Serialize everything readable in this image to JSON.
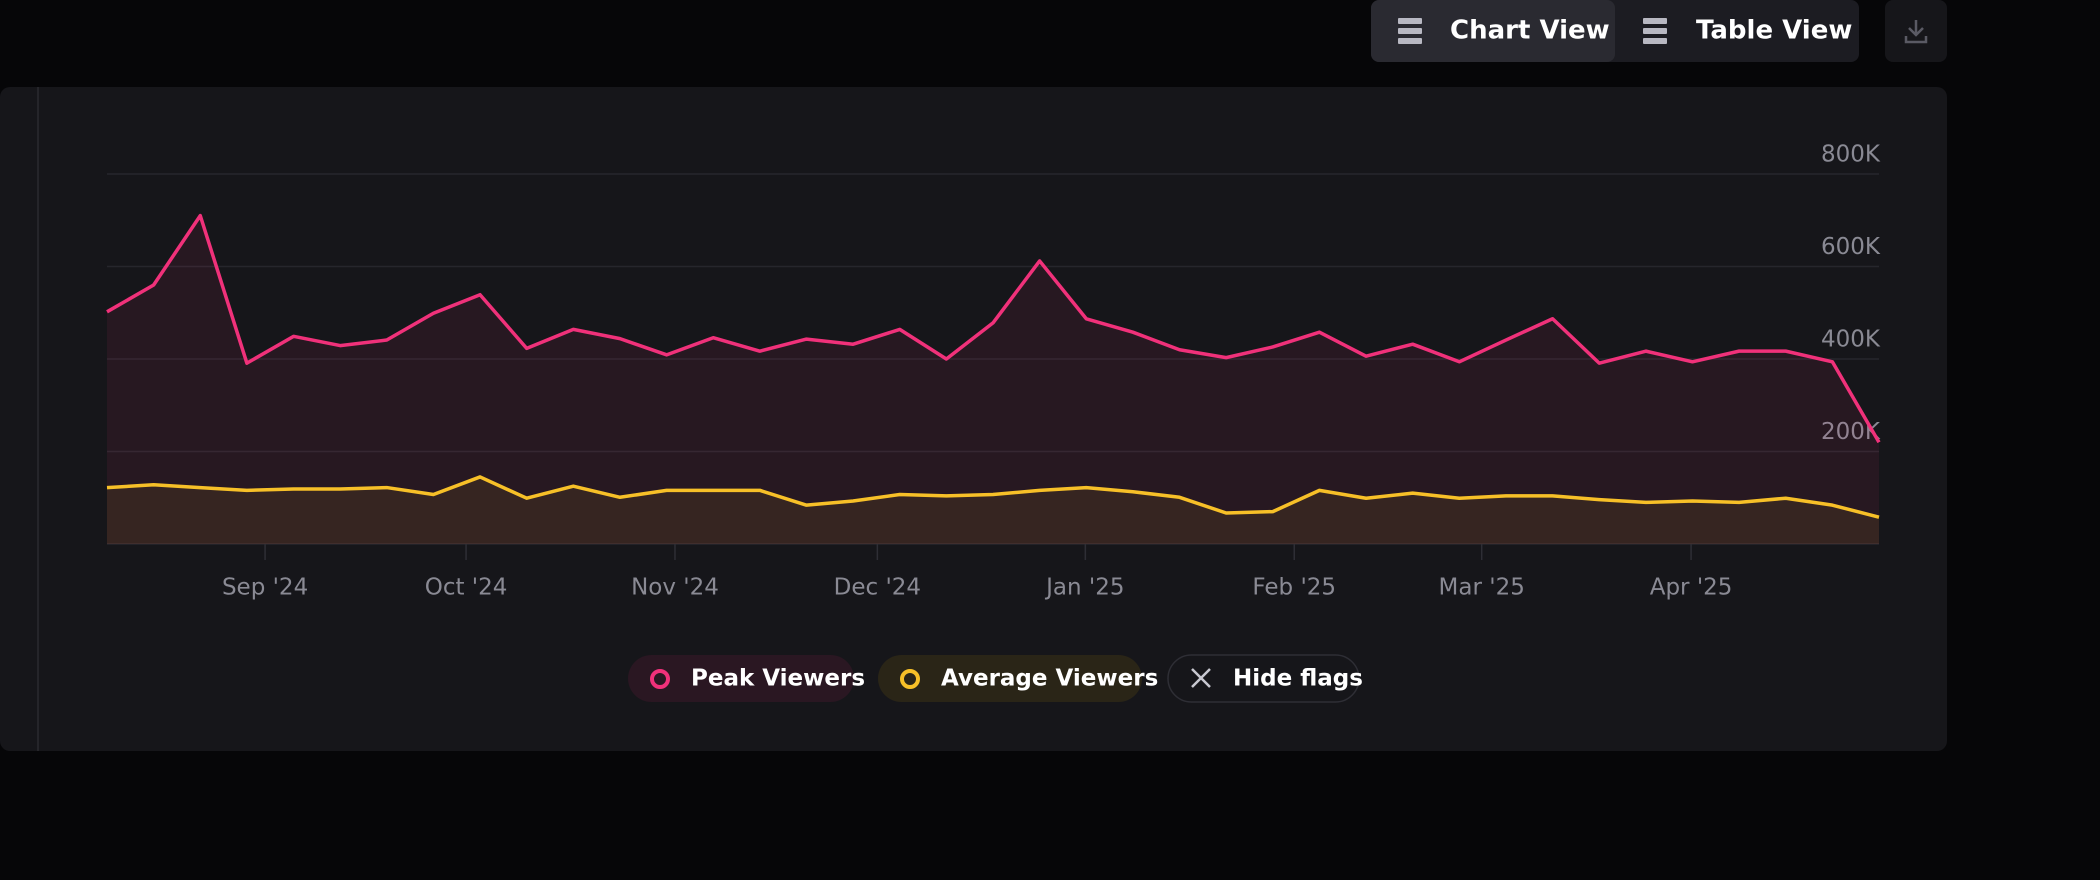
{
  "ui": {
    "chart_view": "Chart View",
    "table_view": "Table View"
  },
  "chart_data": {
    "type": "line",
    "x": [
      0,
      1,
      2,
      3,
      4,
      5,
      6,
      7,
      8,
      9,
      10,
      11,
      12,
      13,
      14,
      15,
      16,
      17,
      18,
      19,
      20,
      21,
      22,
      23,
      24,
      25,
      26,
      27,
      28,
      29,
      30,
      31,
      32,
      33,
      34,
      35,
      36,
      37,
      38
    ],
    "xlim": [
      0,
      38
    ],
    "xticks": [
      {
        "value": 3.39,
        "label": "Sep '24"
      },
      {
        "value": 7.7,
        "label": "Oct '24"
      },
      {
        "value": 12.18,
        "label": "Nov '24"
      },
      {
        "value": 16.52,
        "label": "Dec '24"
      },
      {
        "value": 20.98,
        "label": "Jan '25"
      },
      {
        "value": 25.46,
        "label": "Feb '25"
      },
      {
        "value": 29.48,
        "label": "Mar '25"
      },
      {
        "value": 33.97,
        "label": "Apr '25"
      }
    ],
    "ylim": [
      0,
      800000
    ],
    "yticks": [
      {
        "value": 200000,
        "label": "200K"
      },
      {
        "value": 400000,
        "label": "400K"
      },
      {
        "value": 600000,
        "label": "600K"
      },
      {
        "value": 800000,
        "label": "800K"
      }
    ],
    "grid": true,
    "series": [
      {
        "name": "Peak Viewers",
        "color": "#f0317a",
        "values": [
          502000,
          560000,
          710000,
          391000,
          449000,
          429000,
          441000,
          499000,
          539000,
          423000,
          464000,
          444000,
          409000,
          446000,
          417000,
          443000,
          432000,
          464000,
          400000,
          478000,
          612000,
          487000,
          458000,
          420000,
          403000,
          426000,
          458000,
          406000,
          432000,
          394000,
          441000,
          487000,
          391000,
          417000,
          394000,
          417000,
          417000,
          394000,
          220000
        ]
      },
      {
        "name": "Average Viewers",
        "color": "#f7c028",
        "values": [
          122000,
          128000,
          122000,
          116000,
          119000,
          119000,
          122000,
          107000,
          145000,
          99000,
          125000,
          101000,
          116000,
          116000,
          116000,
          84000,
          93000,
          107000,
          104000,
          107000,
          116000,
          122000,
          113000,
          101000,
          67000,
          70000,
          116000,
          99000,
          110000,
          99000,
          104000,
          104000,
          96000,
          90000,
          93000,
          90000,
          99000,
          84000,
          58000
        ]
      }
    ],
    "hide_flags_label": "Hide flags"
  }
}
